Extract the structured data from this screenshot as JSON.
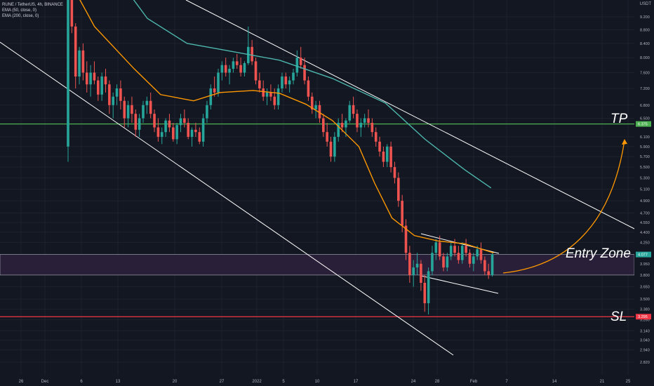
{
  "legend": {
    "symbol": "RUNE / TetherUS, 4h, BINANCE",
    "ema50": "EMA (50, close, 0)",
    "ema200": "EMA (200, close, 0)"
  },
  "price_unit": "USDT",
  "annotations": {
    "tp": "TP",
    "entry": "Entry Zone",
    "sl": "SL"
  },
  "colors": {
    "background": "#131722",
    "up": "#26a69a",
    "down": "#ef5350",
    "ema50": "#ff9800",
    "ema200": "#4db6ac",
    "tp_line": "#4caf50",
    "sl_line": "#f23645",
    "entry_zone": "#2a1f38",
    "channel": "#ffffff",
    "arrow": "#ff9800"
  },
  "chart_data": {
    "type": "candlestick",
    "title": "RUNE / TetherUS, 4h, BINANCE",
    "y_axis_label": "USDT",
    "y_scale": "log",
    "y_ticks": [
      "9.200",
      "8.800",
      "8.400",
      "8.000",
      "7.600",
      "7.200",
      "6.800",
      "6.500",
      "6.375",
      "6.100",
      "5.900",
      "5.700",
      "5.500",
      "5.300",
      "5.100",
      "4.900",
      "4.700",
      "4.550",
      "4.400",
      "4.250",
      "4.077",
      "3.950",
      "3.800",
      "3.650",
      "3.500",
      "3.380",
      "3.295",
      "3.260",
      "3.140",
      "3.040",
      "2.940",
      "2.820"
    ],
    "x_ticks": [
      "26",
      "Dec",
      "6",
      "13",
      "20",
      "27",
      "2022",
      "5",
      "10",
      "17",
      "24",
      "28",
      "Feb",
      "7",
      "14",
      "21",
      "25"
    ],
    "price_labels": [
      {
        "value": "6.375",
        "kind": "take-profit"
      },
      {
        "value": "4.077",
        "kind": "last-price"
      },
      {
        "value": "3.295",
        "kind": "stop-loss"
      }
    ],
    "levels": {
      "take_profit": 6.375,
      "entry_zone_top": 4.077,
      "entry_zone_bottom": 3.8,
      "stop_loss": 3.295
    },
    "series": [
      {
        "name": "EMA (50, close, 0)",
        "color": "#ff9800",
        "points": [
          [
            0,
            10.5
          ],
          [
            20,
            8.9
          ],
          [
            50,
            7.7
          ],
          [
            70,
            7.05
          ],
          [
            95,
            6.9
          ],
          [
            115,
            7.1
          ],
          [
            140,
            7.15
          ],
          [
            160,
            7.08
          ],
          [
            180,
            6.82
          ],
          [
            200,
            6.45
          ],
          [
            220,
            5.9
          ],
          [
            232,
            5.2
          ],
          [
            245,
            4.62
          ],
          [
            262,
            4.35
          ],
          [
            280,
            4.27
          ],
          [
            300,
            4.23
          ],
          [
            322,
            4.1
          ]
        ]
      },
      {
        "name": "EMA (200, close, 0)",
        "color": "#4db6ac",
        "points": [
          [
            30,
            11.0
          ],
          [
            60,
            9.15
          ],
          [
            90,
            8.4
          ],
          [
            120,
            8.2
          ],
          [
            160,
            7.93
          ],
          [
            200,
            7.45
          ],
          [
            240,
            6.85
          ],
          [
            270,
            6.05
          ],
          [
            300,
            5.45
          ],
          [
            320,
            5.12
          ]
        ]
      }
    ],
    "candles": [
      [
        0,
        5.9,
        10.2,
        5.6,
        9.8
      ],
      [
        1,
        9.8,
        10.6,
        8.7,
        8.9
      ],
      [
        2,
        8.9,
        9.0,
        7.2,
        7.5
      ],
      [
        3,
        7.5,
        8.3,
        7.3,
        8.2
      ],
      [
        4,
        8.2,
        8.4,
        7.4,
        7.6
      ],
      [
        5,
        7.6,
        7.9,
        7.1,
        7.3
      ],
      [
        6,
        7.3,
        7.8,
        7.0,
        7.6
      ],
      [
        7,
        7.6,
        7.9,
        7.3,
        7.4
      ],
      [
        8,
        7.4,
        7.5,
        6.9,
        7.05
      ],
      [
        9,
        7.05,
        7.6,
        6.9,
        7.5
      ],
      [
        10,
        7.5,
        7.7,
        7.1,
        7.3
      ],
      [
        11,
        7.3,
        7.4,
        6.6,
        6.8
      ],
      [
        12,
        6.8,
        7.1,
        6.5,
        7.0
      ],
      [
        13,
        7.0,
        7.3,
        6.8,
        7.2
      ],
      [
        14,
        7.2,
        7.4,
        6.7,
        6.9
      ],
      [
        15,
        6.9,
        7.0,
        6.3,
        6.5
      ],
      [
        16,
        6.5,
        6.9,
        6.3,
        6.8
      ],
      [
        17,
        6.8,
        7.0,
        6.4,
        6.6
      ],
      [
        18,
        6.6,
        6.7,
        6.1,
        6.25
      ],
      [
        19,
        6.25,
        6.6,
        6.1,
        6.5
      ],
      [
        20,
        6.5,
        6.9,
        6.4,
        6.8
      ],
      [
        21,
        6.8,
        7.0,
        6.6,
        6.9
      ],
      [
        22,
        6.9,
        7.1,
        6.5,
        6.6
      ],
      [
        23,
        6.6,
        6.7,
        6.2,
        6.3
      ],
      [
        24,
        6.3,
        6.5,
        6.0,
        6.1
      ],
      [
        25,
        6.1,
        6.3,
        5.95,
        6.2
      ],
      [
        26,
        6.2,
        6.5,
        6.1,
        6.45
      ],
      [
        27,
        6.45,
        6.6,
        6.2,
        6.3
      ],
      [
        28,
        6.3,
        6.4,
        6.0,
        6.05
      ],
      [
        29,
        6.05,
        6.4,
        5.95,
        6.35
      ],
      [
        30,
        6.35,
        6.6,
        6.2,
        6.5
      ],
      [
        31,
        6.5,
        6.7,
        6.3,
        6.4
      ],
      [
        32,
        6.4,
        6.5,
        6.05,
        6.1
      ],
      [
        33,
        6.1,
        6.3,
        5.9,
        6.25
      ],
      [
        34,
        6.25,
        6.4,
        6.1,
        6.2
      ],
      [
        35,
        6.2,
        6.3,
        5.95,
        6.0
      ],
      [
        36,
        6.0,
        6.6,
        5.9,
        6.5
      ],
      [
        37,
        6.5,
        6.9,
        6.4,
        6.8
      ],
      [
        38,
        6.8,
        7.3,
        6.7,
        7.2
      ],
      [
        39,
        7.2,
        7.5,
        7.0,
        7.1
      ],
      [
        40,
        7.1,
        7.7,
        7.0,
        7.6
      ],
      [
        41,
        7.6,
        7.9,
        7.4,
        7.8
      ],
      [
        42,
        7.8,
        8.0,
        7.5,
        7.6
      ],
      [
        43,
        7.6,
        7.8,
        7.3,
        7.7
      ],
      [
        44,
        7.7,
        8.0,
        7.6,
        7.9
      ],
      [
        45,
        7.9,
        8.1,
        7.7,
        7.8
      ],
      [
        46,
        7.8,
        8.0,
        7.5,
        7.6
      ],
      [
        47,
        7.6,
        7.9,
        7.5,
        7.85
      ],
      [
        48,
        7.85,
        8.9,
        7.8,
        8.3
      ],
      [
        49,
        8.3,
        8.5,
        7.8,
        7.9
      ],
      [
        50,
        7.9,
        8.0,
        7.3,
        7.4
      ],
      [
        51,
        7.4,
        7.6,
        7.1,
        7.2
      ],
      [
        52,
        7.2,
        7.4,
        6.9,
        7.0
      ],
      [
        53,
        7.0,
        7.2,
        6.8,
        7.1
      ],
      [
        54,
        7.1,
        7.3,
        6.9,
        7.0
      ],
      [
        55,
        7.0,
        7.2,
        6.7,
        6.8
      ],
      [
        56,
        6.8,
        7.3,
        6.7,
        7.2
      ],
      [
        57,
        7.2,
        7.6,
        7.1,
        7.5
      ],
      [
        58,
        7.5,
        7.6,
        7.2,
        7.3
      ],
      [
        59,
        7.3,
        7.5,
        7.1,
        7.4
      ],
      [
        60,
        7.4,
        7.7,
        7.3,
        7.6
      ],
      [
        61,
        7.6,
        8.2,
        7.5,
        8.0
      ],
      [
        62,
        8.0,
        8.3,
        7.7,
        7.8
      ],
      [
        63,
        7.8,
        8.0,
        7.3,
        7.4
      ],
      [
        64,
        7.4,
        7.5,
        6.9,
        7.0
      ],
      [
        65,
        7.0,
        7.1,
        6.6,
        6.7
      ],
      [
        66,
        6.7,
        6.9,
        6.5,
        6.8
      ],
      [
        67,
        6.8,
        6.9,
        6.4,
        6.5
      ],
      [
        68,
        6.5,
        6.6,
        6.1,
        6.2
      ],
      [
        69,
        6.2,
        6.4,
        5.9,
        6.0
      ],
      [
        70,
        6.0,
        6.1,
        5.6,
        5.7
      ],
      [
        71,
        5.7,
        6.2,
        5.6,
        6.1
      ],
      [
        72,
        6.1,
        6.5,
        6.0,
        6.4
      ],
      [
        73,
        6.4,
        6.6,
        6.2,
        6.3
      ],
      [
        74,
        6.3,
        6.5,
        6.1,
        6.45
      ],
      [
        75,
        6.45,
        6.9,
        6.4,
        6.8
      ],
      [
        76,
        6.8,
        7.0,
        6.5,
        6.6
      ],
      [
        77,
        6.6,
        6.7,
        6.2,
        6.3
      ],
      [
        78,
        6.3,
        6.5,
        6.1,
        6.4
      ],
      [
        79,
        6.4,
        6.6,
        6.3,
        6.5
      ],
      [
        80,
        6.5,
        6.7,
        6.3,
        6.4
      ],
      [
        81,
        6.4,
        6.5,
        6.1,
        6.2
      ],
      [
        82,
        6.2,
        6.3,
        5.9,
        6.0
      ],
      [
        83,
        6.0,
        6.1,
        5.7,
        5.8
      ],
      [
        84,
        5.8,
        5.9,
        5.5,
        5.6
      ],
      [
        85,
        5.6,
        5.95,
        5.5,
        5.9
      ],
      [
        86,
        5.9,
        6.0,
        5.4,
        5.5
      ],
      [
        87,
        5.5,
        5.6,
        5.2,
        5.3
      ],
      [
        88,
        5.3,
        5.4,
        4.8,
        4.9
      ],
      [
        89,
        4.9,
        5.0,
        4.4,
        4.5
      ],
      [
        90,
        4.5,
        4.6,
        4.0,
        4.1
      ],
      [
        91,
        4.1,
        4.2,
        3.7,
        3.8
      ],
      [
        92,
        3.8,
        4.0,
        3.65,
        3.9
      ],
      [
        93,
        3.9,
        4.1,
        3.8,
        3.95
      ],
      [
        94,
        3.95,
        4.0,
        3.6,
        3.7
      ],
      [
        95,
        3.7,
        3.8,
        3.35,
        3.45
      ],
      [
        96,
        3.45,
        3.9,
        3.32,
        3.85
      ],
      [
        97,
        3.85,
        4.2,
        3.8,
        4.1
      ],
      [
        98,
        4.1,
        4.3,
        4.0,
        4.25
      ],
      [
        99,
        4.25,
        4.35,
        4.0,
        4.05
      ],
      [
        100,
        4.05,
        4.1,
        3.85,
        3.9
      ],
      [
        101,
        3.9,
        4.1,
        3.85,
        4.05
      ],
      [
        102,
        4.05,
        4.25,
        4.0,
        4.2
      ],
      [
        103,
        4.2,
        4.3,
        4.05,
        4.1
      ],
      [
        104,
        4.1,
        4.2,
        3.95,
        4.0
      ],
      [
        105,
        4.0,
        4.25,
        3.95,
        4.2
      ],
      [
        106,
        4.2,
        4.3,
        4.05,
        4.1
      ],
      [
        107,
        4.1,
        4.15,
        3.9,
        3.95
      ],
      [
        108,
        3.95,
        4.1,
        3.85,
        4.05
      ],
      [
        109,
        4.05,
        4.2,
        4.0,
        4.15
      ],
      [
        110,
        4.15,
        4.25,
        3.95,
        4.0
      ],
      [
        111,
        4.0,
        4.05,
        3.8,
        3.85
      ],
      [
        112,
        3.85,
        3.95,
        3.75,
        3.8
      ],
      [
        113,
        3.8,
        4.1,
        3.78,
        4.077
      ]
    ]
  }
}
